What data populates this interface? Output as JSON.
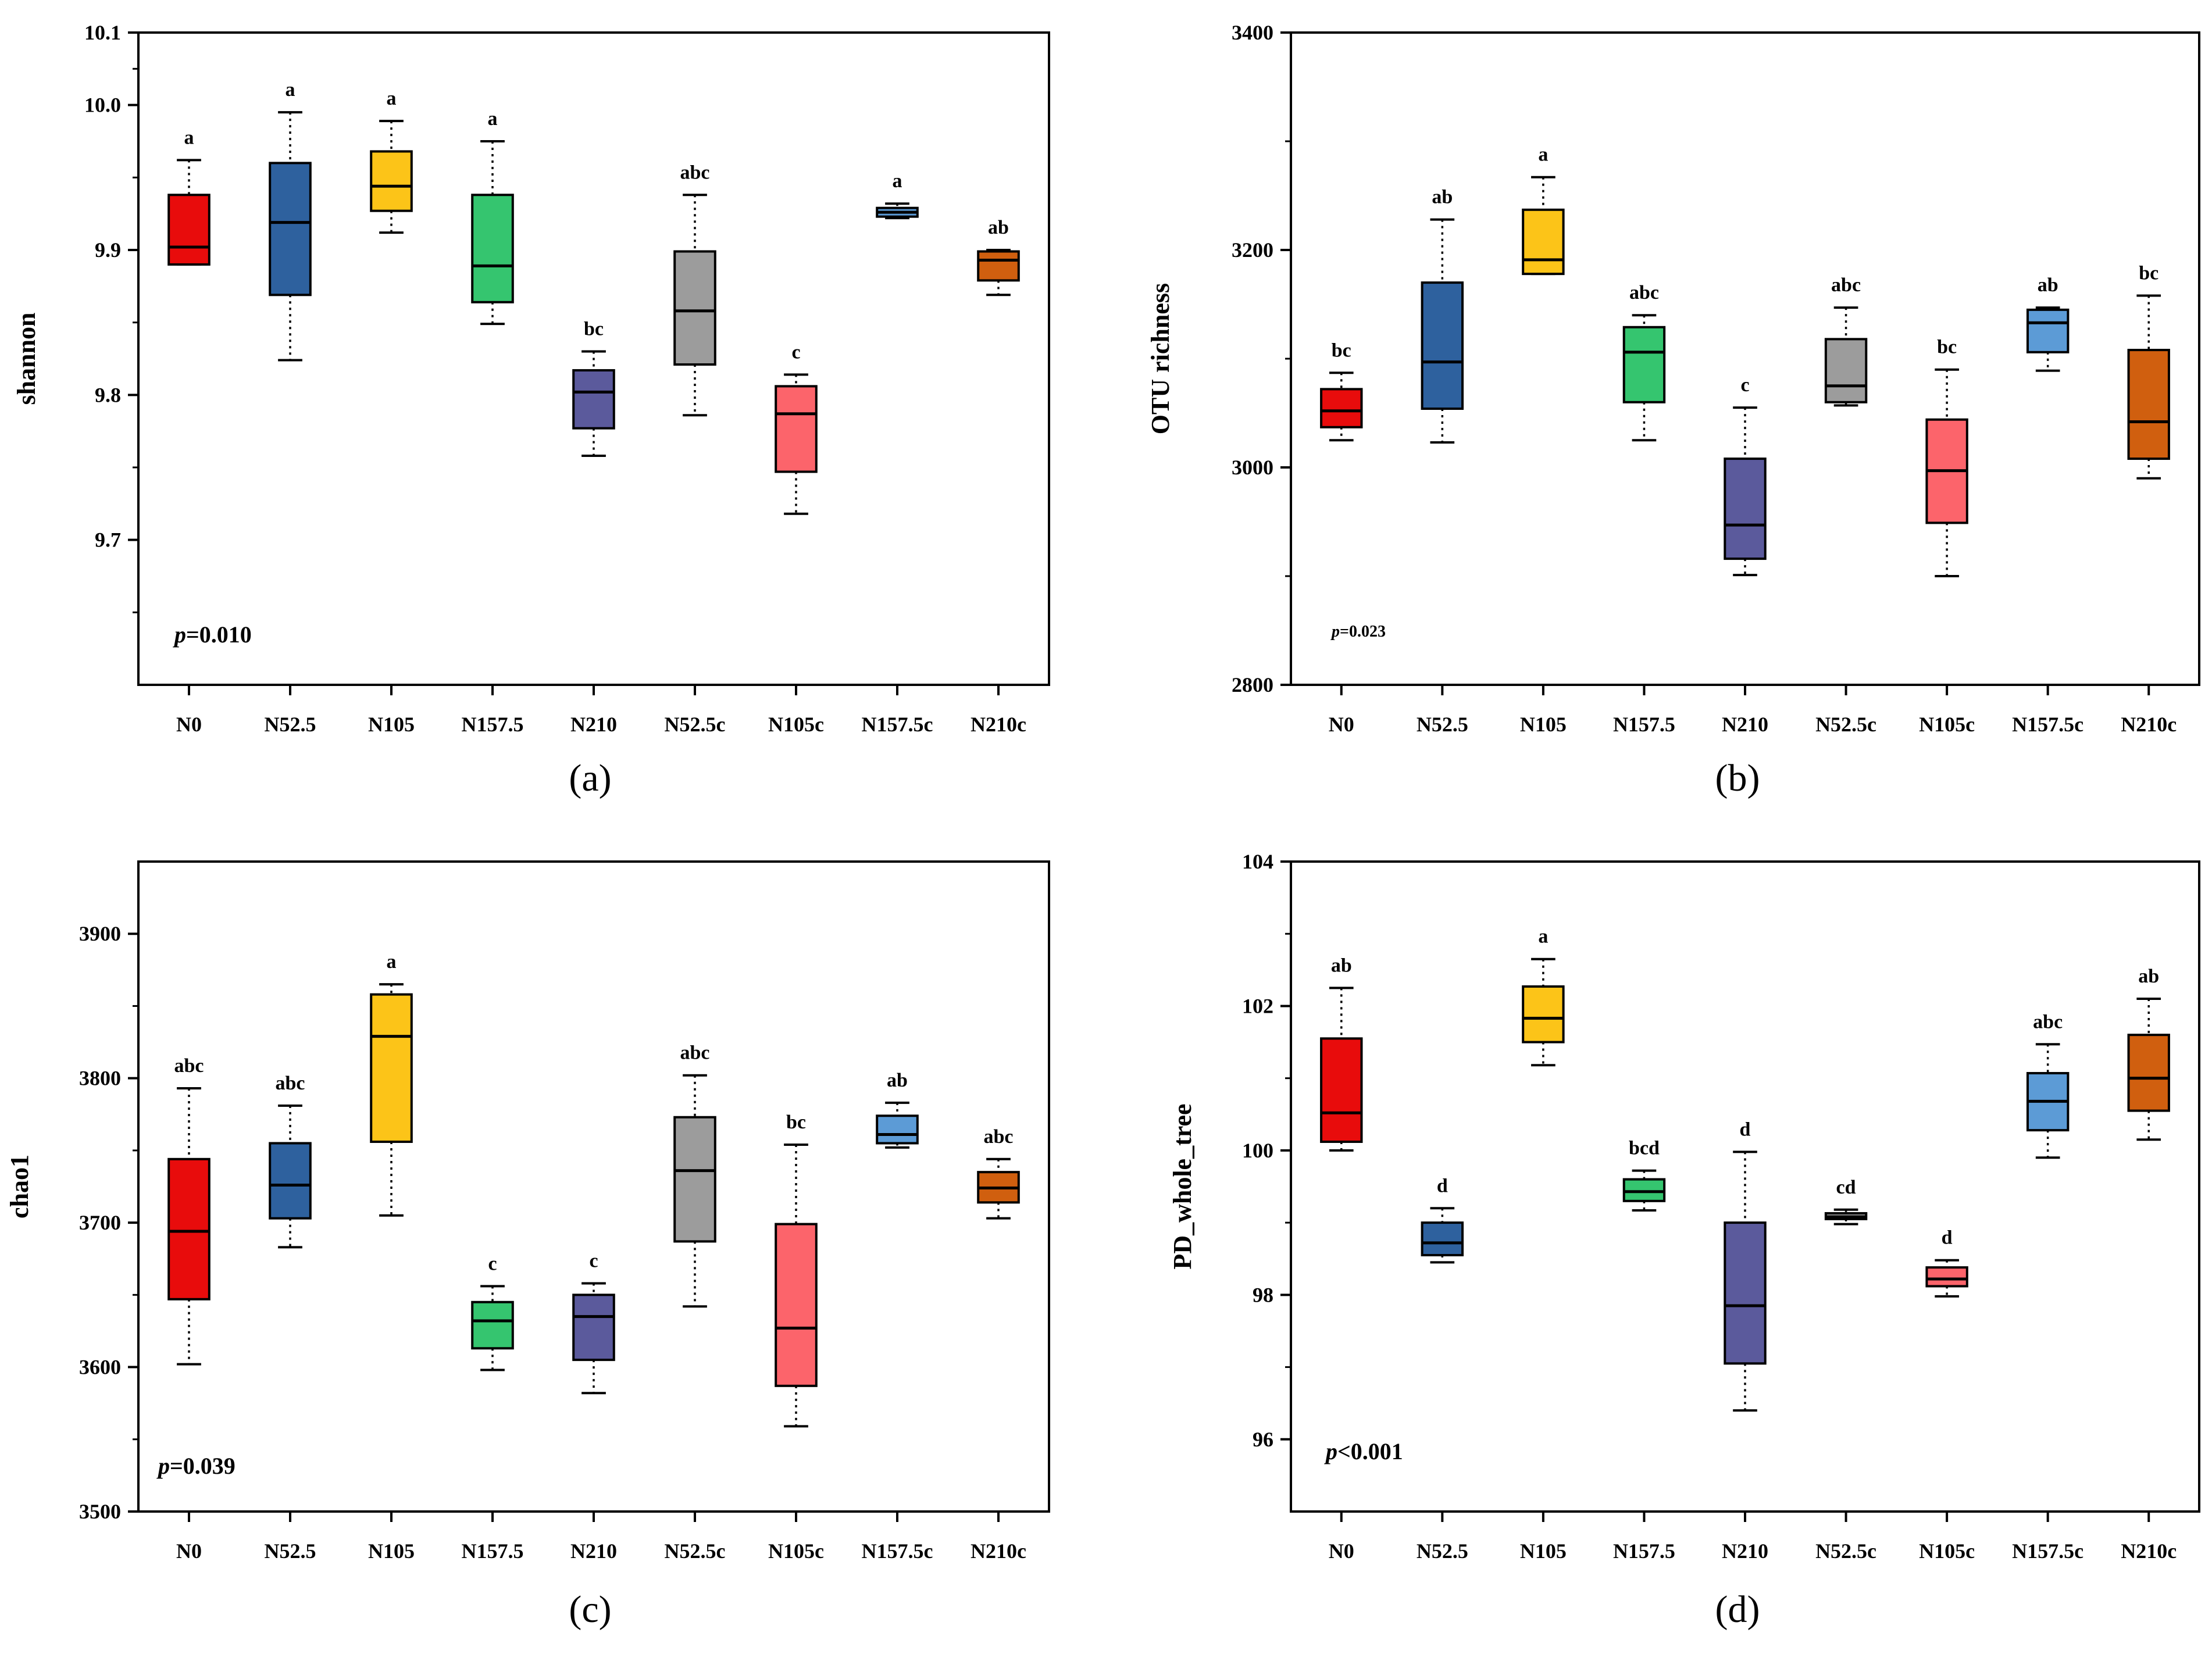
{
  "figure": {
    "category_colors": [
      "#e80c0c",
      "#2e619e",
      "#fcc418",
      "#35c56f",
      "#5b5a9c",
      "#9c9c9c",
      "#fc646b",
      "#5c9bd6",
      "#d05f0f"
    ]
  },
  "chart_data": [
    {
      "type": "box",
      "panel_label": "(a)",
      "ylabel": "shannon",
      "ylim": [
        9.6,
        10.05
      ],
      "yticks": [
        {
          "value": 9.7,
          "label": "9.7"
        },
        {
          "value": 9.8,
          "label": "9.8"
        },
        {
          "value": 9.9,
          "label": "9.9"
        },
        {
          "value": 10.0,
          "label": "10.0"
        },
        {
          "value": 10.05,
          "label": "10.1"
        }
      ],
      "categories": [
        "N0",
        "N52.5",
        "N105",
        "N157.5",
        "N210",
        "N52.5c",
        "N105c",
        "N157.5c",
        "N210c"
      ],
      "boxes": [
        {
          "min": 9.89,
          "q1": 9.89,
          "median": 9.902,
          "q3": 9.938,
          "max": 9.962,
          "sig": "a"
        },
        {
          "min": 9.824,
          "q1": 9.869,
          "median": 9.919,
          "q3": 9.96,
          "max": 9.995,
          "sig": "a"
        },
        {
          "min": 9.912,
          "q1": 9.927,
          "median": 9.944,
          "q3": 9.968,
          "max": 9.989,
          "sig": "a"
        },
        {
          "min": 9.849,
          "q1": 9.864,
          "median": 9.889,
          "q3": 9.938,
          "max": 9.975,
          "sig": "a"
        },
        {
          "min": 9.758,
          "q1": 9.777,
          "median": 9.802,
          "q3": 9.817,
          "max": 9.83,
          "sig": "bc"
        },
        {
          "min": 9.786,
          "q1": 9.821,
          "median": 9.858,
          "q3": 9.899,
          "max": 9.938,
          "sig": "abc"
        },
        {
          "min": 9.718,
          "q1": 9.747,
          "median": 9.787,
          "q3": 9.806,
          "max": 9.814,
          "sig": "c"
        },
        {
          "min": 9.922,
          "q1": 9.923,
          "median": 9.926,
          "q3": 9.929,
          "max": 9.932,
          "sig": "a"
        },
        {
          "min": 9.869,
          "q1": 9.879,
          "median": 9.893,
          "q3": 9.899,
          "max": 9.9,
          "sig": "ab"
        }
      ],
      "annotation": {
        "italic": "p",
        "rest": "=0.010"
      }
    },
    {
      "type": "box",
      "panel_label": "(b)",
      "ylabel": "OTU richness",
      "ylim": [
        2800,
        3400
      ],
      "yticks": [
        {
          "value": 2800,
          "label": "2800"
        },
        {
          "value": 3000,
          "label": "3000"
        },
        {
          "value": 3200,
          "label": "3200"
        },
        {
          "value": 3400,
          "label": "3400"
        }
      ],
      "categories": [
        "N0",
        "N52.5",
        "N105",
        "N157.5",
        "N210",
        "N52.5c",
        "N105c",
        "N157.5c",
        "N210c"
      ],
      "boxes": [
        {
          "min": 3025,
          "q1": 3037,
          "median": 3052,
          "q3": 3072,
          "max": 3087,
          "sig": "bc"
        },
        {
          "min": 3023,
          "q1": 3054,
          "median": 3097,
          "q3": 3170,
          "max": 3228,
          "sig": "ab"
        },
        {
          "min": 3178,
          "q1": 3178,
          "median": 3191,
          "q3": 3237,
          "max": 3267,
          "sig": "a"
        },
        {
          "min": 3025,
          "q1": 3060,
          "median": 3106,
          "q3": 3129,
          "max": 3140,
          "sig": "abc"
        },
        {
          "min": 2901,
          "q1": 2916,
          "median": 2947,
          "q3": 3008,
          "max": 3055,
          "sig": "c"
        },
        {
          "min": 3057,
          "q1": 3060,
          "median": 3075,
          "q3": 3118,
          "max": 3147,
          "sig": "abc"
        },
        {
          "min": 2900,
          "q1": 2949,
          "median": 2997,
          "q3": 3044,
          "max": 3090,
          "sig": "bc"
        },
        {
          "min": 3089,
          "q1": 3106,
          "median": 3133,
          "q3": 3145,
          "max": 3147,
          "sig": "ab"
        },
        {
          "min": 2990,
          "q1": 3008,
          "median": 3042,
          "q3": 3108,
          "max": 3158,
          "sig": "bc"
        }
      ],
      "annotation": {
        "italic": "p",
        "rest": "=0.023"
      }
    },
    {
      "type": "box",
      "panel_label": "(c)",
      "ylabel": "chao1",
      "ylim": [
        3500,
        3950
      ],
      "yticks": [
        {
          "value": 3500,
          "label": "3500"
        },
        {
          "value": 3600,
          "label": "3600"
        },
        {
          "value": 3700,
          "label": "3700"
        },
        {
          "value": 3800,
          "label": "3800"
        },
        {
          "value": 3900,
          "label": "3900"
        }
      ],
      "categories": [
        "N0",
        "N52.5",
        "N105",
        "N157.5",
        "N210",
        "N52.5c",
        "N105c",
        "N157.5c",
        "N210c"
      ],
      "boxes": [
        {
          "min": 3602,
          "q1": 3647,
          "median": 3694,
          "q3": 3744,
          "max": 3793,
          "sig": "abc"
        },
        {
          "min": 3683,
          "q1": 3703,
          "median": 3726,
          "q3": 3755,
          "max": 3781,
          "sig": "abc"
        },
        {
          "min": 3705,
          "q1": 3756,
          "median": 3829,
          "q3": 3858,
          "max": 3865,
          "sig": "a"
        },
        {
          "min": 3598,
          "q1": 3613,
          "median": 3632,
          "q3": 3645,
          "max": 3656,
          "sig": "c"
        },
        {
          "min": 3582,
          "q1": 3605,
          "median": 3635,
          "q3": 3650,
          "max": 3658,
          "sig": "c"
        },
        {
          "min": 3642,
          "q1": 3687,
          "median": 3736,
          "q3": 3773,
          "max": 3802,
          "sig": "abc"
        },
        {
          "min": 3559,
          "q1": 3587,
          "median": 3627,
          "q3": 3699,
          "max": 3754,
          "sig": "bc"
        },
        {
          "min": 3752,
          "q1": 3755,
          "median": 3761,
          "q3": 3774,
          "max": 3783,
          "sig": "ab"
        },
        {
          "min": 3703,
          "q1": 3714,
          "median": 3724,
          "q3": 3735,
          "max": 3744,
          "sig": "abc"
        }
      ],
      "annotation": {
        "italic": "p",
        "rest": "=0.039"
      }
    },
    {
      "type": "box",
      "panel_label": "(d)",
      "ylabel": "PD_whole_tree",
      "ylim": [
        95,
        104
      ],
      "yticks": [
        {
          "value": 96,
          "label": "96"
        },
        {
          "value": 98,
          "label": "98"
        },
        {
          "value": 100,
          "label": "100"
        },
        {
          "value": 102,
          "label": "102"
        },
        {
          "value": 104,
          "label": "104"
        }
      ],
      "categories": [
        "N0",
        "N52.5",
        "N105",
        "N157.5",
        "N210",
        "N52.5c",
        "N105c",
        "N157.5c",
        "N210c"
      ],
      "boxes": [
        {
          "min": 100.0,
          "q1": 100.12,
          "median": 100.52,
          "q3": 101.55,
          "max": 102.25,
          "sig": "ab"
        },
        {
          "min": 98.45,
          "q1": 98.55,
          "median": 98.72,
          "q3": 99.0,
          "max": 99.2,
          "sig": "d"
        },
        {
          "min": 101.18,
          "q1": 101.5,
          "median": 101.83,
          "q3": 102.27,
          "max": 102.65,
          "sig": "a"
        },
        {
          "min": 99.17,
          "q1": 99.3,
          "median": 99.43,
          "q3": 99.6,
          "max": 99.72,
          "sig": "bcd"
        },
        {
          "min": 96.4,
          "q1": 97.05,
          "median": 97.85,
          "q3": 99.0,
          "max": 99.98,
          "sig": "d"
        },
        {
          "min": 98.98,
          "q1": 99.05,
          "median": 99.08,
          "q3": 99.13,
          "max": 99.18,
          "sig": "cd"
        },
        {
          "min": 97.98,
          "q1": 98.12,
          "median": 98.22,
          "q3": 98.38,
          "max": 98.48,
          "sig": "d"
        },
        {
          "min": 99.9,
          "q1": 100.28,
          "median": 100.68,
          "q3": 101.07,
          "max": 101.47,
          "sig": "abc"
        },
        {
          "min": 100.15,
          "q1": 100.55,
          "median": 101.0,
          "q3": 101.6,
          "max": 102.1,
          "sig": "ab"
        }
      ],
      "annotation": {
        "italic": "p",
        "rest": "<0.001"
      }
    }
  ]
}
